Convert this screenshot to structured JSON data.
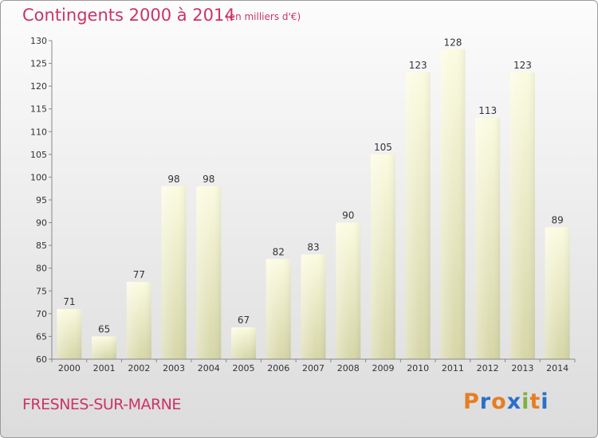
{
  "chart_data": {
    "type": "bar",
    "title": "Contingents 2000 à 2014",
    "subtitle": "(en milliers d'€)",
    "categories": [
      "2000",
      "2001",
      "2002",
      "2003",
      "2004",
      "2005",
      "2006",
      "2007",
      "2008",
      "2009",
      "2010",
      "2011",
      "2012",
      "2013",
      "2014"
    ],
    "values": [
      71,
      65,
      77,
      98,
      98,
      67,
      82,
      83,
      90,
      105,
      123,
      128,
      113,
      123,
      89
    ],
    "ylim": [
      60,
      130
    ],
    "yticks": [
      60,
      65,
      70,
      75,
      80,
      85,
      90,
      95,
      100,
      105,
      110,
      115,
      120,
      125,
      130
    ],
    "grid": false,
    "bar_color": "#f2f2c4"
  },
  "footer": {
    "commune": "FRESNES-SUR-MARNE",
    "logo_text": "Proxiti",
    "logo_colors": [
      "#e67e22",
      "#2a6fc9",
      "#e67e22",
      "#2a6fc9",
      "#7cb342",
      "#e67e22",
      "#2a6fc9"
    ]
  }
}
